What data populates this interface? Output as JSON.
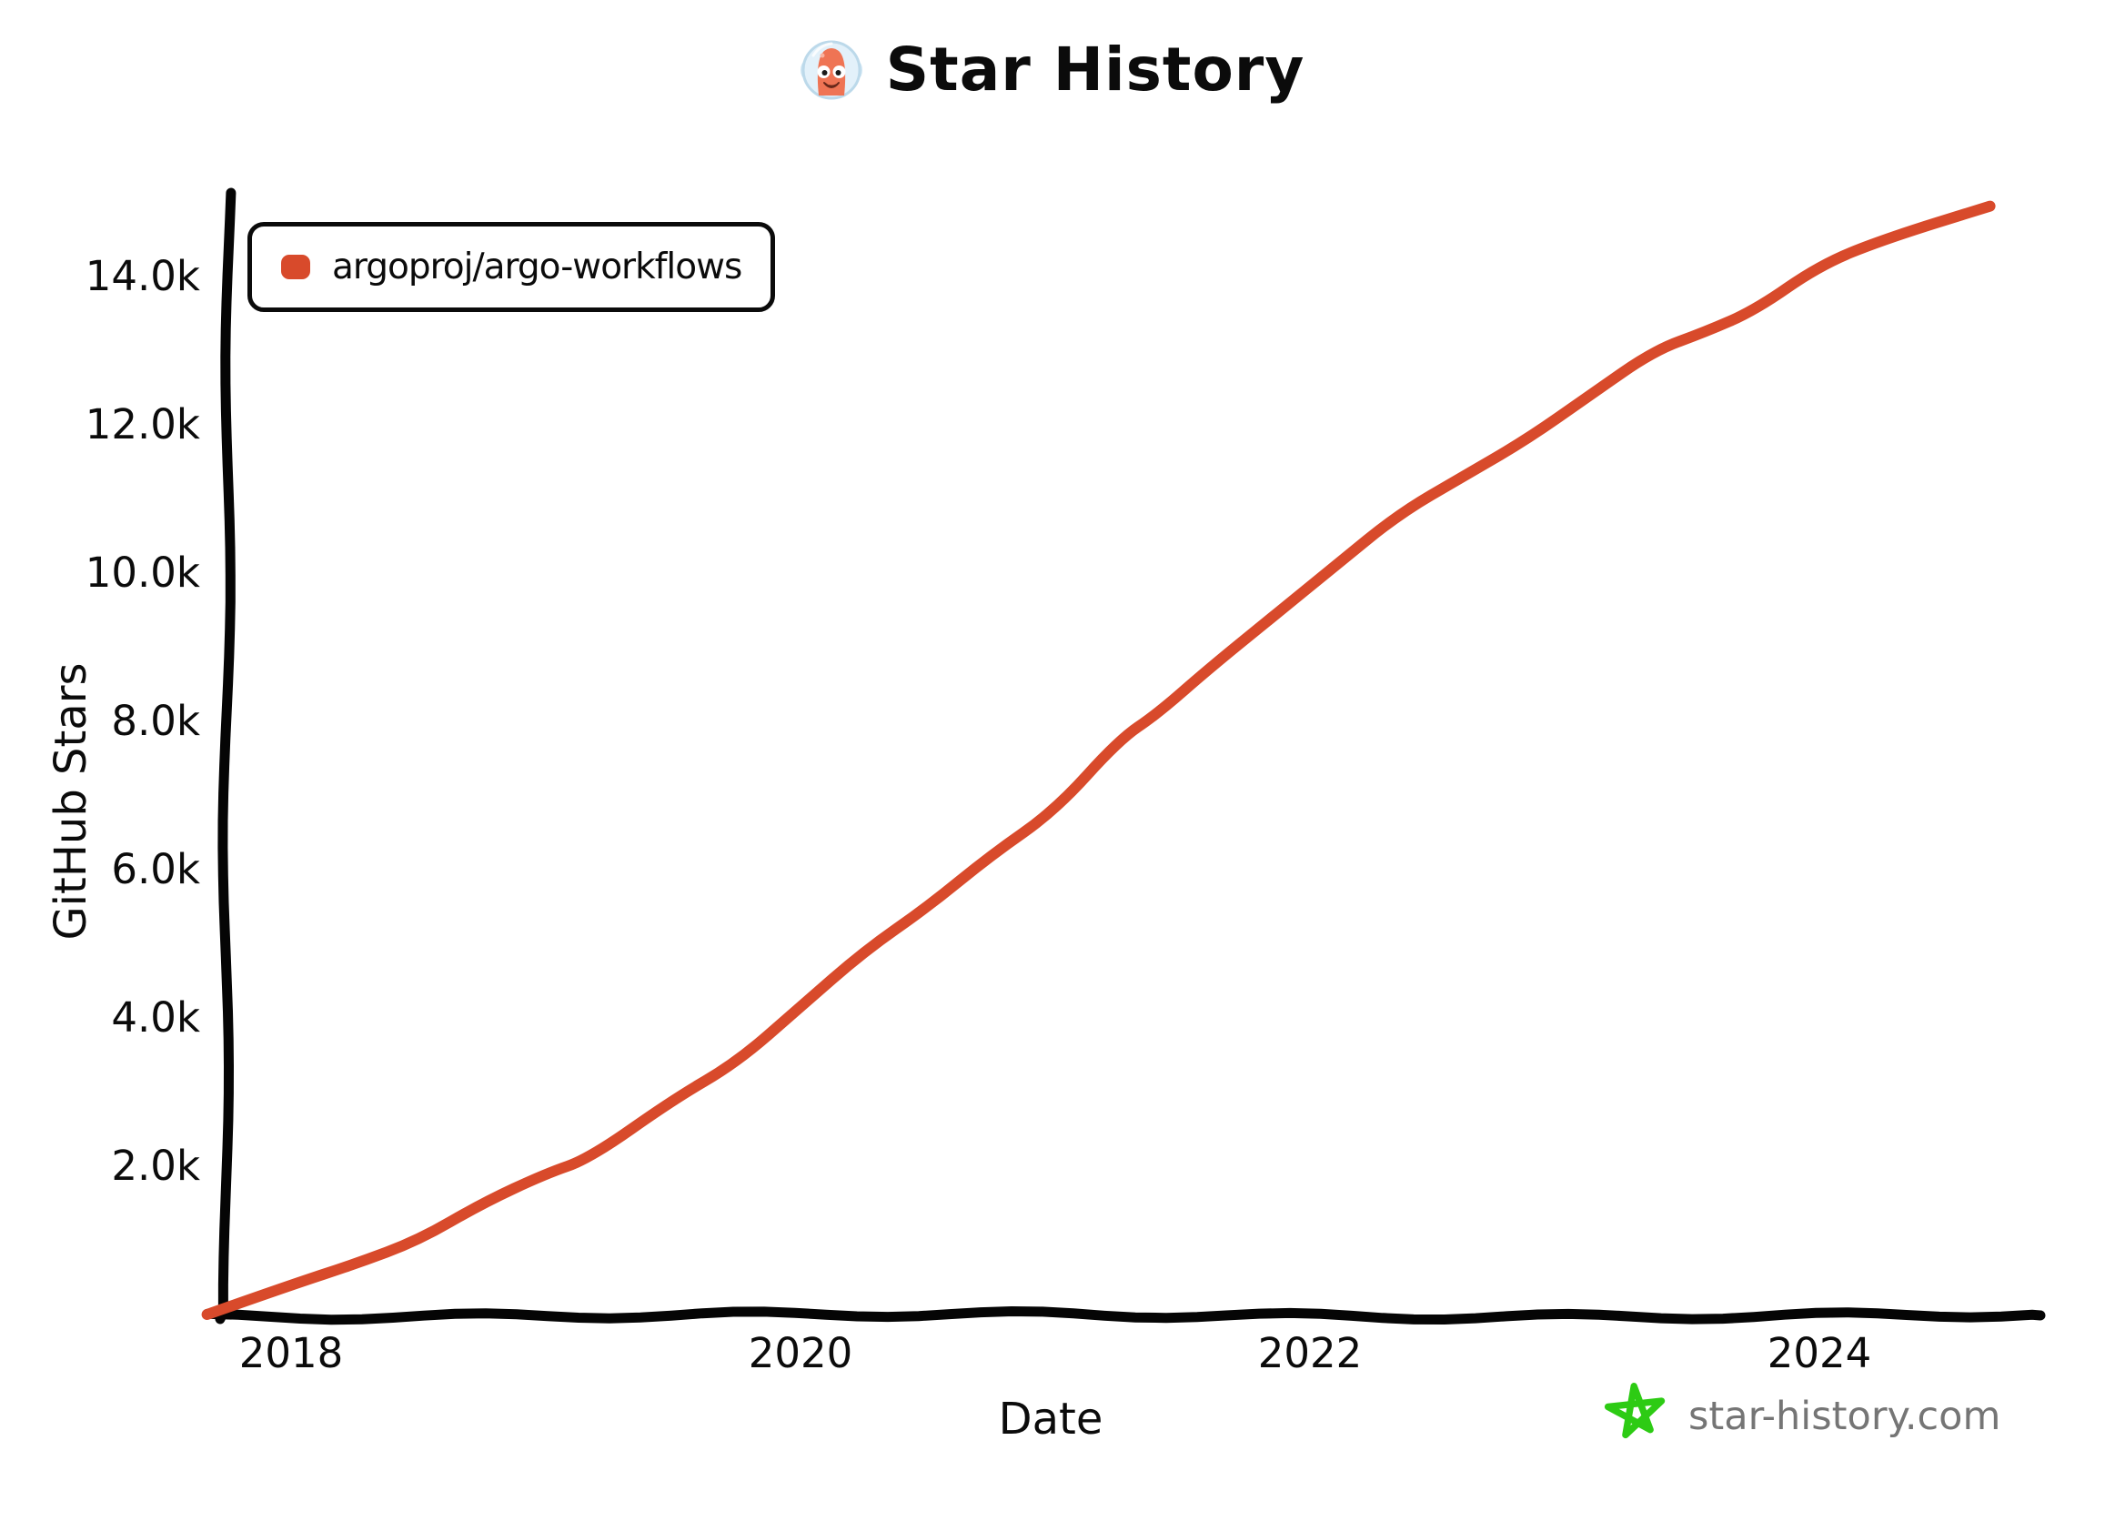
{
  "title": {
    "text": "Star History"
  },
  "legend": {
    "label": "argoproj/argo-workflows",
    "color": "#d84a2b"
  },
  "y_axis": {
    "title": "GitHub Stars",
    "ticks": [
      {
        "label": "14.0k",
        "value": 14000
      },
      {
        "label": "12.0k",
        "value": 12000
      },
      {
        "label": "10.0k",
        "value": 10000
      },
      {
        "label": "8.0k",
        "value": 8000
      },
      {
        "label": "6.0k",
        "value": 6000
      },
      {
        "label": "4.0k",
        "value": 4000
      },
      {
        "label": "2.0k",
        "value": 2000
      }
    ]
  },
  "x_axis": {
    "title": "Date",
    "ticks": [
      {
        "label": "2018",
        "value": 2018
      },
      {
        "label": "2020",
        "value": 2020
      },
      {
        "label": "2022",
        "value": 2022
      },
      {
        "label": "2024",
        "value": 2024
      }
    ]
  },
  "footer": {
    "site": "star-history.com",
    "star_color": "#2dcb14",
    "text_color": "#757575"
  },
  "colors": {
    "series": "#d84a2b",
    "axis": "#000000",
    "background": "#ffffff"
  },
  "chart_data": {
    "type": "line",
    "title": "Star History",
    "xlabel": "Date",
    "ylabel": "GitHub Stars",
    "legend_position": "top-left",
    "grid": false,
    "x_range": [
      2017.6,
      2024.85
    ],
    "y_range": [
      0,
      15000
    ],
    "x_tick_values": [
      2018,
      2020,
      2022,
      2024
    ],
    "y_tick_values": [
      2000,
      4000,
      6000,
      8000,
      10000,
      12000,
      14000
    ],
    "series": [
      {
        "name": "argoproj/argo-workflows",
        "color": "#d84a2b",
        "points": [
          {
            "x": 2017.67,
            "y": 0
          },
          {
            "x": 2018.0,
            "y": 400
          },
          {
            "x": 2018.25,
            "y": 680
          },
          {
            "x": 2018.5,
            "y": 1000
          },
          {
            "x": 2018.75,
            "y": 1500
          },
          {
            "x": 2019.0,
            "y": 1900
          },
          {
            "x": 2019.17,
            "y": 2100
          },
          {
            "x": 2019.5,
            "y": 2900
          },
          {
            "x": 2019.75,
            "y": 3400
          },
          {
            "x": 2020.0,
            "y": 4150
          },
          {
            "x": 2020.25,
            "y": 4900
          },
          {
            "x": 2020.5,
            "y": 5500
          },
          {
            "x": 2020.75,
            "y": 6200
          },
          {
            "x": 2021.0,
            "y": 6800
          },
          {
            "x": 2021.25,
            "y": 7750
          },
          {
            "x": 2021.4,
            "y": 8100
          },
          {
            "x": 2021.6,
            "y": 8700
          },
          {
            "x": 2021.85,
            "y": 9400
          },
          {
            "x": 2022.1,
            "y": 10100
          },
          {
            "x": 2022.35,
            "y": 10800
          },
          {
            "x": 2022.6,
            "y": 11300
          },
          {
            "x": 2022.85,
            "y": 11800
          },
          {
            "x": 2023.1,
            "y": 12400
          },
          {
            "x": 2023.35,
            "y": 13000
          },
          {
            "x": 2023.55,
            "y": 13250
          },
          {
            "x": 2023.75,
            "y": 13550
          },
          {
            "x": 2024.0,
            "y": 14150
          },
          {
            "x": 2024.25,
            "y": 14500
          },
          {
            "x": 2024.67,
            "y": 14950
          }
        ]
      }
    ]
  }
}
